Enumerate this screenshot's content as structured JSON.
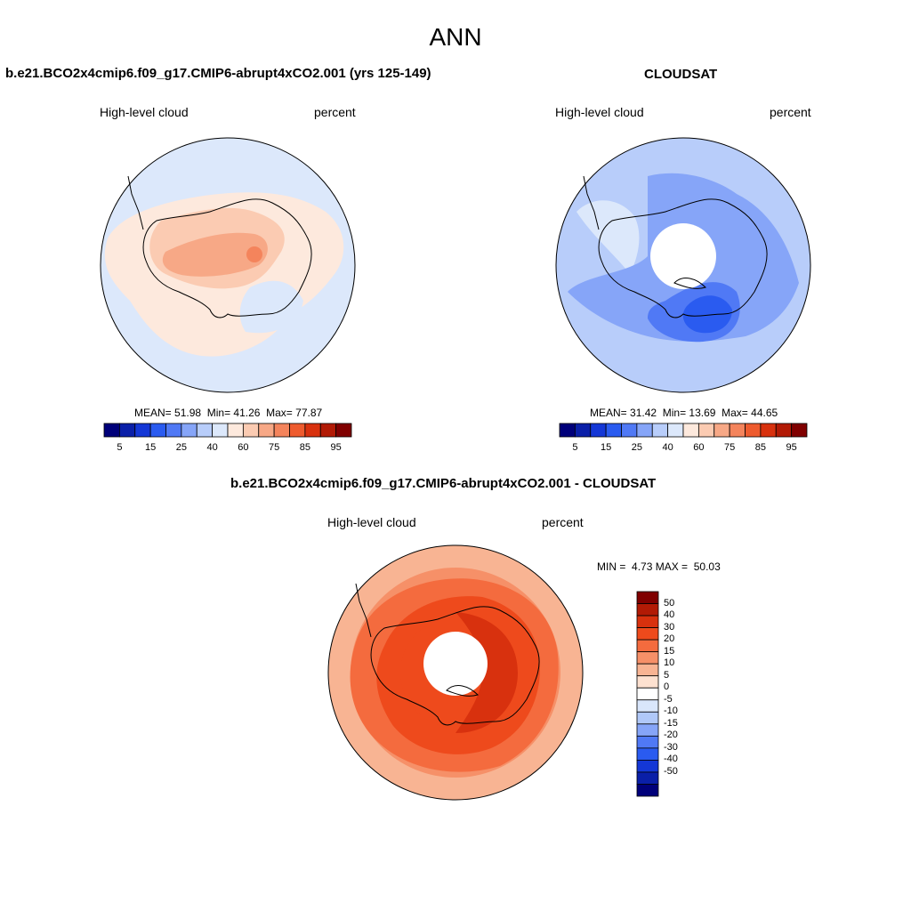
{
  "page": {
    "title": "ANN"
  },
  "panels": [
    {
      "title": "b.e21.BCO2x4cmip6.f09_g17.CMIP6-abrupt4xCO2.001 (yrs 125-149)",
      "variable": "High-level cloud",
      "units": "percent",
      "stats": {
        "mean_label": "MEAN=",
        "mean": "51.98",
        "min_label": "Min=",
        "min": "41.26",
        "max_label": "Max=",
        "max": "77.87"
      }
    },
    {
      "title": "CLOUDSAT",
      "variable": "High-level cloud",
      "units": "percent",
      "stats": {
        "mean_label": "MEAN=",
        "mean": "31.42",
        "min_label": "Min=",
        "min": "13.69",
        "max_label": "Max=",
        "max": "44.65"
      }
    },
    {
      "title": "b.e21.BCO2x4cmip6.f09_g17.CMIP6-abrupt4xCO2.001 - CLOUDSAT",
      "variable": "High-level cloud",
      "units": "percent",
      "stats": {
        "min_label": "MIN =",
        "min": "4.73",
        "max_label": "MAX =",
        "max": "50.03"
      }
    }
  ],
  "colorbar_abs": {
    "colors": [
      "#00007a",
      "#0a1fa8",
      "#1437d6",
      "#2a5bf0",
      "#5079f5",
      "#86a5f8",
      "#b8cdfa",
      "#dce8fb",
      "#fde9dd",
      "#fbcbb2",
      "#f7a886",
      "#f4845c",
      "#ee5b2e",
      "#d8310e",
      "#b21a05",
      "#800000"
    ],
    "labels": [
      "5",
      "15",
      "25",
      "40",
      "60",
      "75",
      "85",
      "95"
    ]
  },
  "colorbar_diff": {
    "colors": [
      "#800000",
      "#b21a05",
      "#d8310e",
      "#ee4a1c",
      "#f46b3e",
      "#f69068",
      "#f8b493",
      "#fde1d0",
      "#ffffff",
      "#d9e6fb",
      "#b0c8f8",
      "#86a5f8",
      "#5079f5",
      "#2a5bf0",
      "#1437d6",
      "#0a1fa8",
      "#00007a"
    ],
    "labels": [
      "50",
      "40",
      "30",
      "20",
      "15",
      "10",
      "5",
      "0",
      "-5",
      "-10",
      "-15",
      "-20",
      "-30",
      "-40",
      "-50"
    ]
  },
  "map_colors": {
    "p1_background": "#dce8fb",
    "p1_level_mid": "#fde9dd",
    "p1_level_high": "#fbcbb2",
    "p1_level_top": "#f7a886",
    "p1_level_peak": "#f4845c",
    "p2_background": "#b8cdfa",
    "p2_light": "#dce8fb",
    "p2_mid": "#86a5f8",
    "p2_dark": "#5079f5",
    "p2_darker": "#2a5bf0",
    "p3_outer": "#f8b493",
    "p3_mid": "#f69068",
    "p3_inner": "#f46b3e",
    "p3_core": "#ee4a1c",
    "p3_peak": "#d8310e"
  }
}
